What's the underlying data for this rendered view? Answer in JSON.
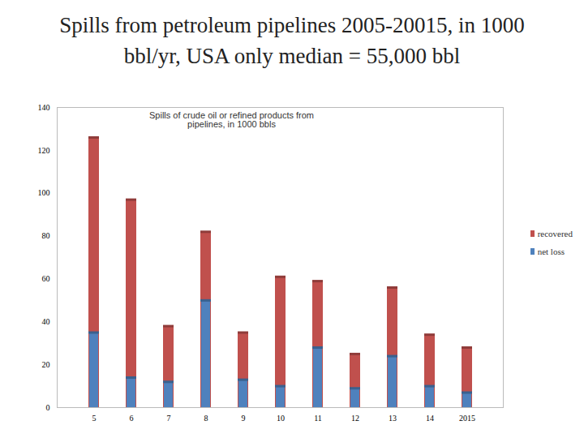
{
  "chart_data": {
    "type": "bar",
    "title": "Spills from petroleum pipelines 2005-20015, in 1000 bbl/yr, USA only median = 55,000 bbl",
    "subtitle": "Spills of crude oil or refined products from pipelines, in 1000 bbls",
    "categories": [
      "5",
      "6",
      "7",
      "8",
      "9",
      "10",
      "11",
      "12",
      "13",
      "14",
      "2015"
    ],
    "series": [
      {
        "name": "recovered",
        "color": "#c0504d",
        "values": [
          126,
          97,
          38,
          82,
          35,
          61,
          59,
          25,
          56,
          34,
          28
        ]
      },
      {
        "name": "net loss",
        "color": "#4f81bd",
        "values": [
          35,
          14,
          12,
          50,
          13,
          10,
          28,
          9,
          24,
          10,
          7
        ]
      }
    ],
    "ylim": [
      0,
      140
    ],
    "yticks": [
      0,
      20,
      40,
      60,
      80,
      100,
      120,
      140
    ],
    "stacked": false,
    "legend": "right",
    "grid": false
  }
}
